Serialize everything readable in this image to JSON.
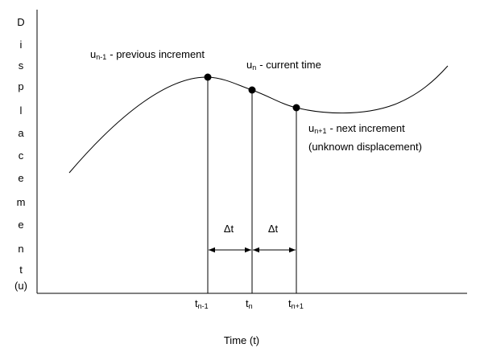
{
  "axes": {
    "y_label_letters": [
      "D",
      "i",
      "s",
      "p",
      "l",
      "a",
      "c",
      "e",
      "m",
      "e",
      "n",
      "t",
      "(u)"
    ],
    "x_label": "Time (t)"
  },
  "points": [
    {
      "symbol": "u",
      "subscript": "n-1",
      "description": "- previous increment"
    },
    {
      "symbol": "u",
      "subscript": "n",
      "description": "- current time"
    },
    {
      "symbol": "u",
      "subscript": "n+1",
      "description": "- next increment",
      "note": "(unknown displacement)"
    }
  ],
  "time_ticks": [
    {
      "symbol": "t",
      "subscript": "n-1"
    },
    {
      "symbol": "t",
      "subscript": "n"
    },
    {
      "symbol": "t",
      "subscript": "n+1"
    }
  ],
  "intervals": [
    "Δt",
    "Δt"
  ]
}
